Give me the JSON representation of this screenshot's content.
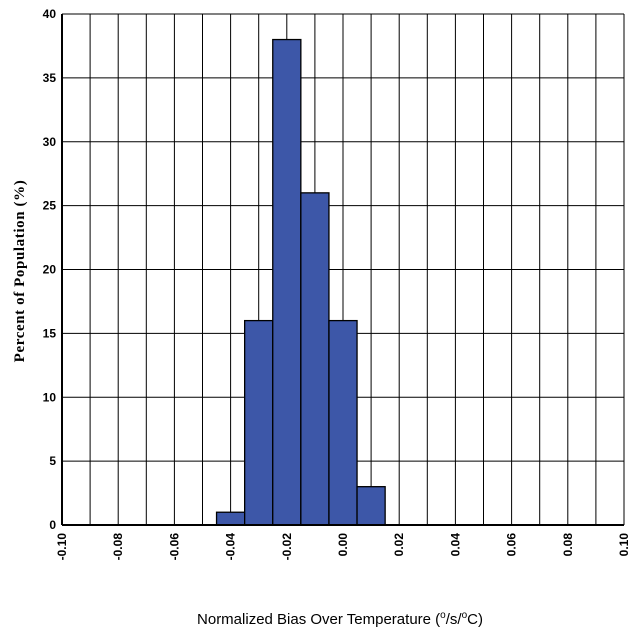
{
  "chart_data": {
    "type": "bar",
    "title": "",
    "ylabel": "Percent of Population (%)",
    "xlabel_parts": {
      "prefix": "Normalized Bias Over Temperature (",
      "sup1": "o",
      "middle": "/s/",
      "sup2": "o",
      "suffix": "C)"
    },
    "xlim": [
      -0.1,
      0.1
    ],
    "ylim": [
      0,
      40
    ],
    "x_ticks": [
      "-0.10",
      "-0.08",
      "-0.06",
      "-0.04",
      "-0.02",
      "0.00",
      "0.02",
      "0.04",
      "0.06",
      "0.08",
      "0.10"
    ],
    "y_ticks": [
      "0",
      "5",
      "10",
      "15",
      "20",
      "25",
      "30",
      "35",
      "40"
    ],
    "grid": true,
    "bar_color": "#3d57a8",
    "bins": [
      {
        "start": -0.045,
        "end": -0.035,
        "value": 1
      },
      {
        "start": -0.035,
        "end": -0.025,
        "value": 16
      },
      {
        "start": -0.025,
        "end": -0.015,
        "value": 38
      },
      {
        "start": -0.015,
        "end": -0.005,
        "value": 26
      },
      {
        "start": -0.005,
        "end": 0.005,
        "value": 16
      },
      {
        "start": 0.005,
        "end": 0.015,
        "value": 3
      }
    ]
  }
}
